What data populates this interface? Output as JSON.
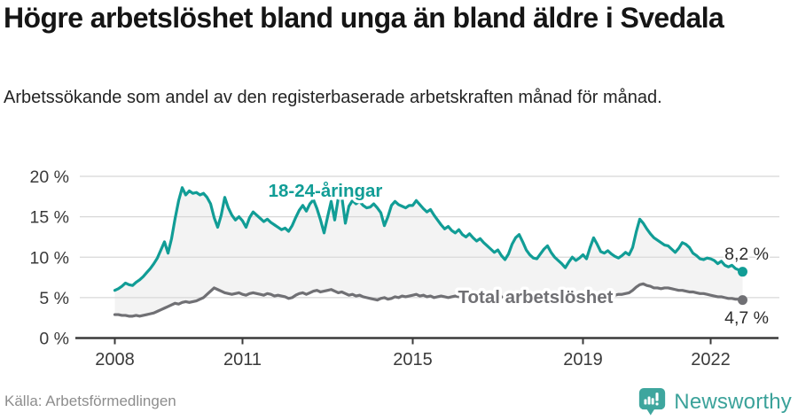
{
  "header": {
    "title": "Högre arbetslöshet bland unga än bland äldre i Svedala",
    "subtitle": "Arbetssökande som andel av den registerbaserade arbetskraften månad för månad."
  },
  "footer": {
    "source": "Källa: Arbetsförmedlingen",
    "brand": "Newsworthy"
  },
  "colors": {
    "accent_teal": "#119d96",
    "line_gray": "#707074",
    "brand_teal": "#3ea69e",
    "grid": "#d8d8d8",
    "axis": "#3a3a3a",
    "fill_between": "#f3f3f3"
  },
  "chart_data": {
    "type": "line",
    "unit": "%",
    "x_monthly_from": "2008-01",
    "x_monthly_to": "2022-10",
    "x_tick_years": [
      2008,
      2011,
      2015,
      2019,
      2022
    ],
    "y_ticks": [
      {
        "value": 0,
        "label": "0 %"
      },
      {
        "value": 5,
        "label": "5 %"
      },
      {
        "value": 10,
        "label": "10 %"
      },
      {
        "value": 15,
        "label": "15 %"
      },
      {
        "value": 20,
        "label": "20 %"
      }
    ],
    "ylim": [
      0,
      21
    ],
    "grid": true,
    "legend_position": "inline-labels",
    "series": [
      {
        "name": "18-24-åringar",
        "color": "#119d96",
        "end_label": "8,2 %",
        "end_value": 8.2,
        "values": [
          5.9,
          6.1,
          6.4,
          6.8,
          6.6,
          6.5,
          6.9,
          7.2,
          7.6,
          8.1,
          8.6,
          9.2,
          9.9,
          10.9,
          11.9,
          10.5,
          12.3,
          14.8,
          17.0,
          18.6,
          17.7,
          18.2,
          17.9,
          18.0,
          17.7,
          17.9,
          17.4,
          16.6,
          14.9,
          13.7,
          15.2,
          17.4,
          16.1,
          15.2,
          14.6,
          15.0,
          14.5,
          13.7,
          14.9,
          15.6,
          15.2,
          14.8,
          14.4,
          14.7,
          14.3,
          14.0,
          13.7,
          13.4,
          13.6,
          13.2,
          13.9,
          14.9,
          15.8,
          16.4,
          15.7,
          16.6,
          17.1,
          16.0,
          14.6,
          13.0,
          15.0,
          16.9,
          14.6,
          17.3,
          17.5,
          14.2,
          16.3,
          17.0,
          16.6,
          16.9,
          16.4,
          16.1,
          16.2,
          16.6,
          16.1,
          15.5,
          13.9,
          15.0,
          16.4,
          16.9,
          16.5,
          16.3,
          16.1,
          16.4,
          16.4,
          17.0,
          16.5,
          16.0,
          15.6,
          15.9,
          15.2,
          14.6,
          14.0,
          13.5,
          13.8,
          13.3,
          13.0,
          13.4,
          12.8,
          12.5,
          12.9,
          12.4,
          12.0,
          12.3,
          11.8,
          11.4,
          11.0,
          10.6,
          10.9,
          10.2,
          9.7,
          10.4,
          11.6,
          12.4,
          12.8,
          11.9,
          10.9,
          10.3,
          9.9,
          9.8,
          10.4,
          11.0,
          11.4,
          10.6,
          10.0,
          9.6,
          9.2,
          8.7,
          9.4,
          10.0,
          9.6,
          9.9,
          10.3,
          9.8,
          11.2,
          12.4,
          11.6,
          10.7,
          10.5,
          10.8,
          10.4,
          10.1,
          9.9,
          10.2,
          10.6,
          10.3,
          11.2,
          13.1,
          14.7,
          14.2,
          13.5,
          12.9,
          12.4,
          12.1,
          11.8,
          11.5,
          11.4,
          11.0,
          10.6,
          11.1,
          11.8,
          11.6,
          11.2,
          10.5,
          10.2,
          9.8,
          9.7,
          9.9,
          9.8,
          9.6,
          9.2,
          9.5,
          9.0,
          8.8,
          9.0,
          8.6,
          8.4,
          8.2
        ]
      },
      {
        "name": "Total arbetslöshet",
        "color": "#707074",
        "end_label": "4,7 %",
        "end_value": 4.7,
        "values": [
          2.9,
          2.9,
          2.8,
          2.8,
          2.7,
          2.7,
          2.8,
          2.7,
          2.8,
          2.9,
          3.0,
          3.1,
          3.3,
          3.5,
          3.7,
          3.9,
          4.1,
          4.3,
          4.2,
          4.4,
          4.5,
          4.4,
          4.5,
          4.6,
          4.8,
          5.0,
          5.4,
          5.8,
          6.2,
          6.0,
          5.8,
          5.6,
          5.5,
          5.4,
          5.5,
          5.6,
          5.4,
          5.3,
          5.5,
          5.6,
          5.5,
          5.4,
          5.3,
          5.5,
          5.4,
          5.2,
          5.3,
          5.2,
          5.1,
          4.9,
          5.0,
          5.3,
          5.5,
          5.6,
          5.4,
          5.6,
          5.8,
          5.9,
          5.7,
          5.8,
          5.9,
          6.0,
          5.8,
          5.6,
          5.7,
          5.5,
          5.3,
          5.4,
          5.2,
          5.3,
          5.1,
          5.0,
          4.9,
          4.8,
          4.7,
          4.9,
          5.0,
          4.8,
          4.9,
          5.1,
          5.0,
          5.2,
          5.1,
          5.2,
          5.3,
          5.4,
          5.2,
          5.3,
          5.1,
          5.2,
          5.0,
          5.1,
          5.2,
          5.1,
          5.0,
          5.1,
          5.2,
          5.1,
          5.0,
          5.1,
          5.0,
          4.9,
          5.0,
          5.1,
          5.0,
          5.1,
          5.2,
          5.1,
          5.0,
          5.1,
          5.0,
          4.9,
          5.0,
          5.1,
          5.0,
          5.1,
          5.2,
          5.1,
          5.0,
          5.1,
          5.2,
          5.1,
          5.2,
          5.1,
          5.0,
          4.9,
          5.0,
          5.1,
          5.2,
          5.1,
          5.2,
          5.1,
          5.2,
          5.2,
          5.3,
          5.2,
          5.3,
          5.2,
          5.3,
          5.3,
          5.4,
          5.3,
          5.4,
          5.4,
          5.5,
          5.6,
          5.9,
          6.3,
          6.6,
          6.7,
          6.5,
          6.4,
          6.2,
          6.2,
          6.1,
          6.2,
          6.2,
          6.1,
          6.0,
          5.9,
          5.9,
          5.8,
          5.7,
          5.7,
          5.6,
          5.5,
          5.5,
          5.4,
          5.3,
          5.2,
          5.1,
          5.1,
          5.0,
          4.9,
          4.9,
          4.8,
          4.8,
          4.7
        ]
      }
    ]
  }
}
